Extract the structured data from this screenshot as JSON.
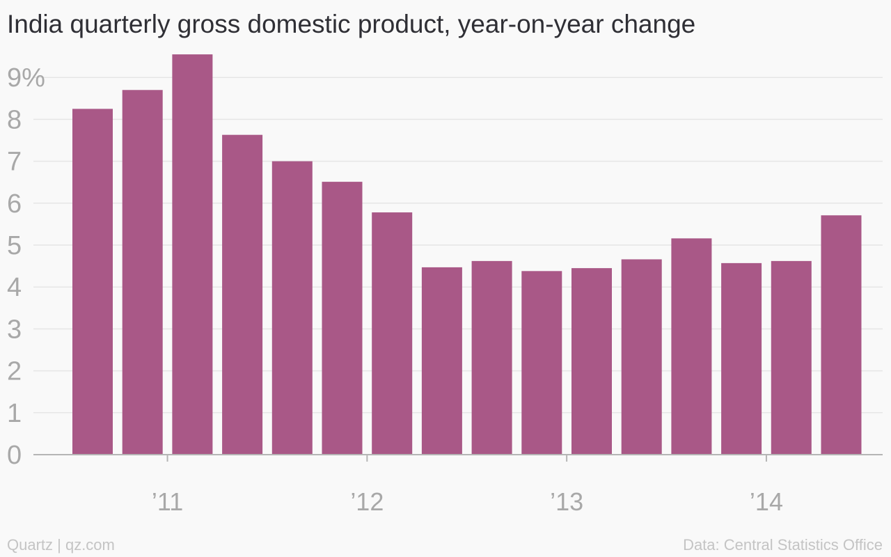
{
  "title": "India quarterly gross domestic product, year-on-year change",
  "footer": {
    "left": "Quartz | qz.com",
    "right": "Data: Central Statistics Office"
  },
  "colors": {
    "bar": "#a95887",
    "grid": "#e6e6e6",
    "axis": "#b5b5b5",
    "tick_text": "#a8a8a8"
  },
  "chart_data": {
    "type": "bar",
    "title": "India quarterly gross domestic product, year-on-year change",
    "xlabel": "",
    "ylabel": "",
    "ylim": [
      0,
      10
    ],
    "grid": true,
    "y_ticks": [
      {
        "value": 0,
        "label": "0"
      },
      {
        "value": 1,
        "label": "1"
      },
      {
        "value": 2,
        "label": "2"
      },
      {
        "value": 3,
        "label": "3"
      },
      {
        "value": 4,
        "label": "4"
      },
      {
        "value": 5,
        "label": "5"
      },
      {
        "value": 6,
        "label": "6"
      },
      {
        "value": 7,
        "label": "7"
      },
      {
        "value": 8,
        "label": "8"
      },
      {
        "value": 9,
        "label": "9%"
      }
    ],
    "x_ticks": [
      {
        "label": "’11",
        "quarter_index": 1.5
      },
      {
        "label": "’12",
        "quarter_index": 5.5
      },
      {
        "label": "’13",
        "quarter_index": 9.5
      },
      {
        "label": "’14",
        "quarter_index": 13.5
      }
    ],
    "values": [
      8.25,
      8.7,
      9.55,
      7.63,
      7.0,
      6.51,
      5.78,
      4.47,
      4.62,
      4.38,
      4.45,
      4.66,
      5.16,
      4.57,
      4.62,
      5.71
    ]
  }
}
